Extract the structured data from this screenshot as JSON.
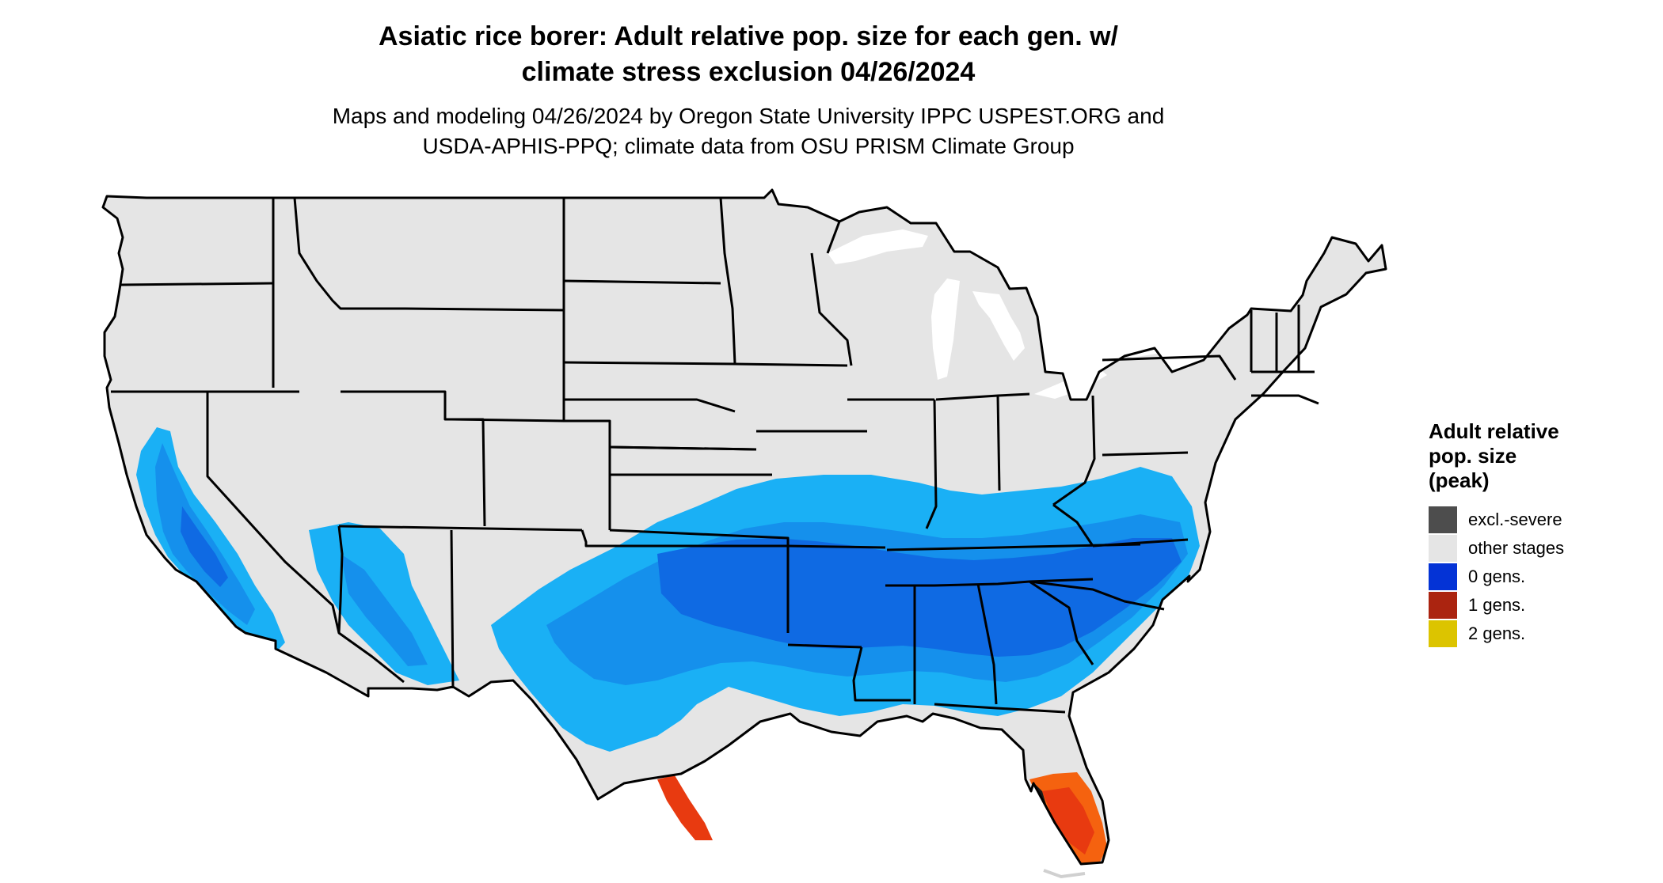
{
  "title": {
    "line1": "Asiatic rice borer: Adult relative pop. size for each gen. w/",
    "line2": "climate stress exclusion 04/26/2024"
  },
  "subtitle": {
    "line1": "Maps and modeling 04/26/2024 by Oregon State University IPPC USPEST.ORG and",
    "line2": "USDA-APHIS-PPQ; climate data from OSU PRISM Climate Group"
  },
  "map": {
    "region": "contiguous-united-states",
    "colors": {
      "land": "#e5e5e5",
      "state_border": "#000000",
      "light_blue": "#1ab0f5",
      "mid_blue": "#1590ec",
      "dark_blue": "#0f6ae3",
      "florida_red": "#e83a10",
      "florida_orange": "#f5620f"
    }
  },
  "legend": {
    "title_lines": [
      "Adult relative",
      "pop. size",
      "(peak)"
    ],
    "items": [
      {
        "label": "excl.-severe",
        "color": "#4d4d4d"
      },
      {
        "label": "other stages",
        "color": "#e5e5e5"
      },
      {
        "label": "0 gens.",
        "color": "#0433d6"
      },
      {
        "label": "1 gens.",
        "color": "#ab2410"
      },
      {
        "label": "2 gens.",
        "color": "#dcc400"
      }
    ]
  }
}
